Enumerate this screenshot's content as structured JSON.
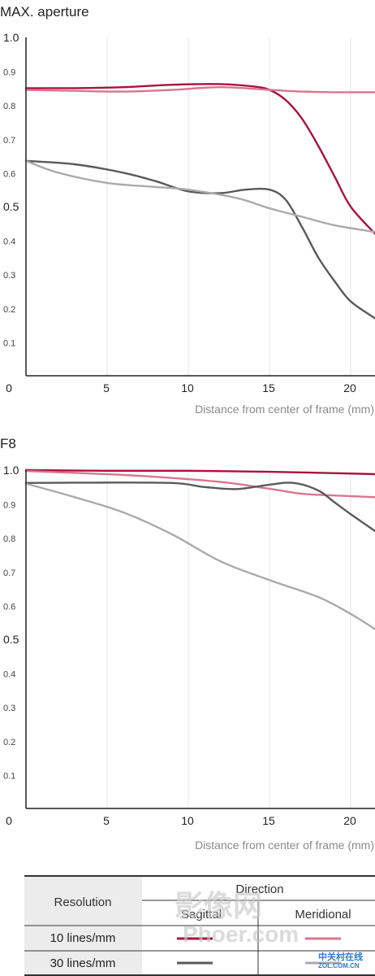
{
  "chart_data": [
    {
      "type": "line",
      "title": "MAX. aperture",
      "xlabel": "Distance from center of frame (mm)",
      "ylabel": "",
      "xlim": [
        0,
        21.5
      ],
      "ylim": [
        0,
        1.0
      ],
      "x_ticks": [
        "0",
        "5",
        "10",
        "15",
        "20"
      ],
      "y_ticks": [
        "0.1",
        "0.2",
        "0.3",
        "0.4",
        "0.5",
        "0.6",
        "0.7",
        "0.8",
        "0.9",
        "1.0"
      ],
      "grid": true,
      "series": [
        {
          "color": "#a8123d",
          "x": [
            0,
            3,
            6,
            9,
            12,
            14,
            15,
            16,
            17,
            18,
            19,
            20,
            21.5
          ],
          "y": [
            0.85,
            0.85,
            0.853,
            0.86,
            0.862,
            0.855,
            0.845,
            0.815,
            0.76,
            0.68,
            0.59,
            0.5,
            0.42
          ]
        },
        {
          "color": "#d9768f",
          "x": [
            0,
            3,
            6,
            9,
            12,
            15,
            17,
            19,
            21.5
          ],
          "y": [
            0.845,
            0.842,
            0.84,
            0.845,
            0.853,
            0.845,
            0.84,
            0.838,
            0.838
          ]
        },
        {
          "color": "#5a5a5a",
          "x": [
            0,
            3,
            6,
            8,
            10,
            12,
            13.5,
            15,
            16,
            17,
            18,
            19,
            20,
            21.5
          ],
          "y": [
            0.635,
            0.625,
            0.6,
            0.575,
            0.545,
            0.54,
            0.55,
            0.55,
            0.52,
            0.44,
            0.35,
            0.28,
            0.22,
            0.17
          ]
        },
        {
          "color": "#aaaaaa",
          "x": [
            0,
            2,
            5,
            8,
            10,
            13,
            15,
            17,
            19,
            21.5
          ],
          "y": [
            0.635,
            0.6,
            0.57,
            0.558,
            0.55,
            0.525,
            0.495,
            0.47,
            0.445,
            0.425
          ]
        }
      ]
    },
    {
      "type": "line",
      "title": "F8",
      "xlabel": "Distance from center of frame (mm)",
      "ylabel": "",
      "xlim": [
        0,
        21.5
      ],
      "ylim": [
        0,
        1.0
      ],
      "x_ticks": [
        "0",
        "5",
        "10",
        "15",
        "20"
      ],
      "y_ticks": [
        "0.1",
        "0.2",
        "0.3",
        "0.4",
        "0.5",
        "0.6",
        "0.7",
        "0.8",
        "0.9",
        "1.0"
      ],
      "grid": true,
      "series": [
        {
          "color": "#a8123d",
          "x": [
            0,
            5,
            10,
            15,
            18,
            21.5
          ],
          "y": [
            1.0,
            0.998,
            0.998,
            0.995,
            0.992,
            0.988
          ]
        },
        {
          "color": "#d9768f",
          "x": [
            0,
            4,
            8,
            12,
            15,
            17,
            19,
            21.5
          ],
          "y": [
            0.997,
            0.99,
            0.98,
            0.965,
            0.945,
            0.93,
            0.925,
            0.92
          ]
        },
        {
          "color": "#5a5a5a",
          "x": [
            0,
            4,
            9,
            11,
            13,
            15,
            16.5,
            18,
            19,
            20,
            21.5
          ],
          "y": [
            0.962,
            0.963,
            0.962,
            0.95,
            0.944,
            0.957,
            0.962,
            0.94,
            0.905,
            0.87,
            0.82
          ]
        },
        {
          "color": "#aaaaaa",
          "x": [
            0,
            3,
            6,
            9,
            12,
            15,
            18,
            20,
            21.5
          ],
          "y": [
            0.96,
            0.92,
            0.875,
            0.81,
            0.73,
            0.675,
            0.625,
            0.575,
            0.53
          ]
        }
      ]
    }
  ],
  "legend": {
    "resolution_label": "Resolution",
    "direction_label": "Direction",
    "sagittal_label": "Sagittal",
    "meridional_label": "Meridional",
    "rows": [
      {
        "label": "10 lines/mm",
        "sagittal_color": "#a8123d",
        "meridional_color": "#d9768f"
      },
      {
        "label": "30 lines/mm",
        "sagittal_color": "#5a5a5a",
        "meridional_color": "#aaaaaa"
      }
    ]
  },
  "watermark": {
    "main_text": "影像网",
    "sub_text": "Phoer.com",
    "corner_text": "中关村在线",
    "corner_sub": "ZOL.COM.CN"
  }
}
